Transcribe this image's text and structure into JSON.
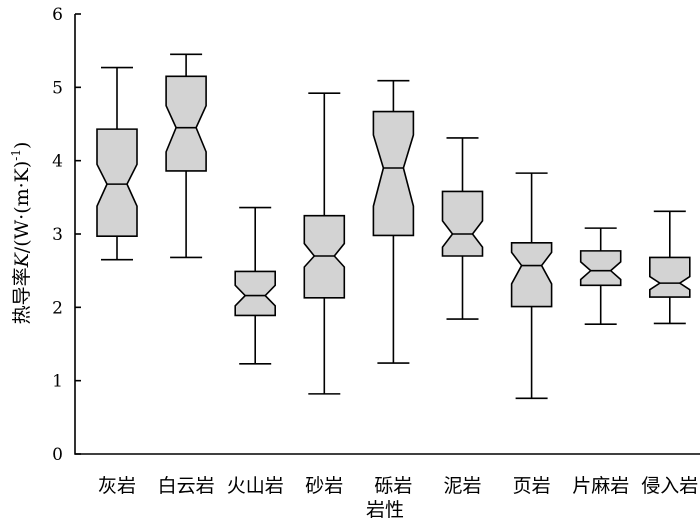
{
  "chart_data": {
    "type": "boxplot",
    "notched": true,
    "ylabel_prefix": "热导率",
    "ylabel_symbol": "K",
    "ylabel_unit": "/(W·(m·K)",
    "ylabel_exponent": "-1",
    "ylabel_close": ")",
    "xlabel": "岩性",
    "ylim": [
      0,
      6
    ],
    "yticks": [
      "0",
      "1",
      "2",
      "3",
      "4",
      "5",
      "6"
    ],
    "box_color": "#d3d3d3",
    "categories": [
      "灰岩",
      "白云岩",
      "火山岩",
      "砂岩",
      "砾岩",
      "泥岩",
      "页岩",
      "片麻岩",
      "侵入岩"
    ],
    "boxes": [
      {
        "category": "灰岩",
        "min": 2.65,
        "q1": 2.97,
        "notch_low": 3.38,
        "median": 3.68,
        "notch_high": 3.95,
        "q3": 4.43,
        "max": 5.27
      },
      {
        "category": "白云岩",
        "min": 2.68,
        "q1": 3.86,
        "notch_low": 4.12,
        "median": 4.45,
        "notch_high": 4.75,
        "q3": 5.15,
        "max": 5.45
      },
      {
        "category": "火山岩",
        "min": 1.23,
        "q1": 1.89,
        "notch_low": 2.02,
        "median": 2.16,
        "notch_high": 2.3,
        "q3": 2.49,
        "max": 3.36
      },
      {
        "category": "砂岩",
        "min": 0.82,
        "q1": 2.13,
        "notch_low": 2.55,
        "median": 2.7,
        "notch_high": 2.87,
        "q3": 3.25,
        "max": 4.92
      },
      {
        "category": "砾岩",
        "min": 1.24,
        "q1": 2.98,
        "notch_low": 3.38,
        "median": 3.9,
        "notch_high": 4.35,
        "q3": 4.67,
        "max": 5.09
      },
      {
        "category": "泥岩",
        "min": 1.84,
        "q1": 2.7,
        "notch_low": 2.82,
        "median": 3.0,
        "notch_high": 3.18,
        "q3": 3.58,
        "max": 4.31
      },
      {
        "category": "页岩",
        "min": 0.76,
        "q1": 2.01,
        "notch_low": 2.32,
        "median": 2.57,
        "notch_high": 2.75,
        "q3": 2.88,
        "max": 3.83
      },
      {
        "category": "片麻岩",
        "min": 1.77,
        "q1": 2.3,
        "notch_low": 2.38,
        "median": 2.5,
        "notch_high": 2.62,
        "q3": 2.77,
        "max": 3.08
      },
      {
        "category": "侵入岩",
        "min": 1.78,
        "q1": 2.14,
        "notch_low": 2.24,
        "median": 2.33,
        "notch_high": 2.42,
        "q3": 2.68,
        "max": 3.31
      }
    ]
  }
}
